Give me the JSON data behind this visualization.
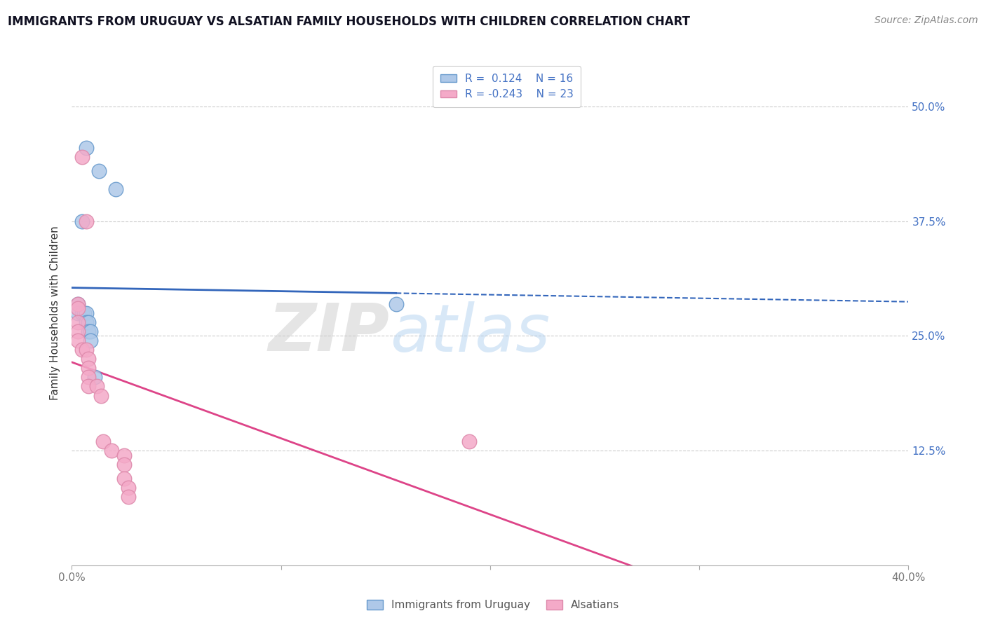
{
  "title": "IMMIGRANTS FROM URUGUAY VS ALSATIAN FAMILY HOUSEHOLDS WITH CHILDREN CORRELATION CHART",
  "source_text": "Source: ZipAtlas.com",
  "ylabel": "Family Households with Children",
  "xlim": [
    0.0,
    0.4
  ],
  "ylim": [
    0.0,
    0.55
  ],
  "yticks": [
    0.125,
    0.25,
    0.375,
    0.5
  ],
  "ytick_labels": [
    "12.5%",
    "25.0%",
    "37.5%",
    "50.0%"
  ],
  "xticks": [
    0.0,
    0.1,
    0.2,
    0.3,
    0.4
  ],
  "xtick_labels": [
    "0.0%",
    "",
    "",
    "",
    "40.0%"
  ],
  "legend_r_blue": "R =  0.124",
  "legend_n_blue": "N = 16",
  "legend_r_pink": "R = -0.243",
  "legend_n_pink": "N = 23",
  "blue_color": "#aec8e8",
  "pink_color": "#f4aac8",
  "blue_edge_color": "#6699cc",
  "pink_edge_color": "#dd88aa",
  "blue_line_color": "#3366bb",
  "pink_line_color": "#dd4488",
  "blue_line_solid_end": 0.155,
  "watermark_zip_color": "#cccccc",
  "watermark_atlas_color": "#aaccee",
  "blue_dots_x": [
    0.007,
    0.013,
    0.021,
    0.005,
    0.003,
    0.003,
    0.005,
    0.006,
    0.007,
    0.007,
    0.008,
    0.008,
    0.009,
    0.009,
    0.011,
    0.155
  ],
  "blue_dots_y": [
    0.455,
    0.43,
    0.41,
    0.375,
    0.285,
    0.275,
    0.275,
    0.275,
    0.275,
    0.265,
    0.265,
    0.255,
    0.255,
    0.245,
    0.205,
    0.285
  ],
  "pink_dots_x": [
    0.005,
    0.007,
    0.003,
    0.003,
    0.003,
    0.003,
    0.003,
    0.005,
    0.007,
    0.008,
    0.008,
    0.008,
    0.008,
    0.012,
    0.014,
    0.015,
    0.019,
    0.025,
    0.025,
    0.025,
    0.027,
    0.027,
    0.19
  ],
  "pink_dots_y": [
    0.445,
    0.375,
    0.285,
    0.28,
    0.265,
    0.255,
    0.245,
    0.235,
    0.235,
    0.225,
    0.215,
    0.205,
    0.195,
    0.195,
    0.185,
    0.135,
    0.125,
    0.12,
    0.11,
    0.095,
    0.085,
    0.075,
    0.135
  ],
  "title_fontsize": 12,
  "axis_label_fontsize": 11,
  "tick_fontsize": 11,
  "legend_fontsize": 11,
  "source_fontsize": 10
}
